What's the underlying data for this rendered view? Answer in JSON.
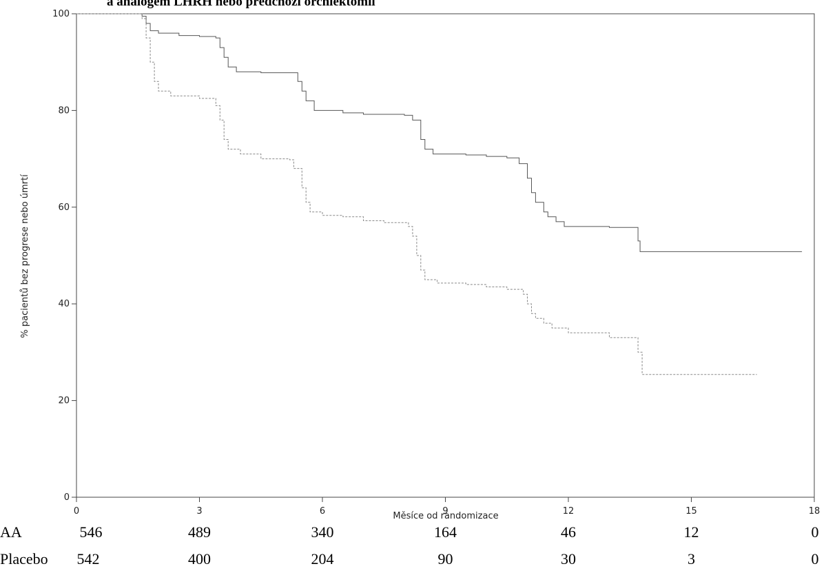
{
  "title": "a analogem LHRH nebo předchozí orchiektomií",
  "chart_data": {
    "type": "line",
    "ylabel": "% pacientů bez progrese nebo úmrtí",
    "xlabel": "Měsíce od randomizace",
    "xlim": [
      0,
      18
    ],
    "ylim": [
      0,
      100
    ],
    "xticks": [
      "0",
      "3",
      "6",
      "9",
      "12",
      "15",
      "18"
    ],
    "yticks": [
      "0",
      "20",
      "40",
      "60",
      "80",
      "100"
    ],
    "grid": false,
    "series": [
      {
        "name": "AA",
        "style": "solid",
        "points": [
          [
            0,
            100
          ],
          [
            1.5,
            100
          ],
          [
            1.6,
            99.5
          ],
          [
            1.7,
            98
          ],
          [
            1.8,
            96.5
          ],
          [
            2,
            96
          ],
          [
            2.5,
            95.5
          ],
          [
            3,
            95.3
          ],
          [
            3.4,
            95
          ],
          [
            3.5,
            93
          ],
          [
            3.6,
            91
          ],
          [
            3.7,
            89
          ],
          [
            3.9,
            88
          ],
          [
            4.5,
            87.8
          ],
          [
            5.2,
            87.8
          ],
          [
            5.4,
            86
          ],
          [
            5.5,
            84
          ],
          [
            5.6,
            82
          ],
          [
            5.8,
            80
          ],
          [
            6.5,
            79.5
          ],
          [
            7,
            79.2
          ],
          [
            8,
            79
          ],
          [
            8.2,
            78
          ],
          [
            8.4,
            74
          ],
          [
            8.5,
            72
          ],
          [
            8.7,
            71
          ],
          [
            9.5,
            70.8
          ],
          [
            10,
            70.5
          ],
          [
            10.5,
            70.2
          ],
          [
            10.8,
            69
          ],
          [
            11,
            66
          ],
          [
            11.1,
            63
          ],
          [
            11.2,
            61
          ],
          [
            11.4,
            59
          ],
          [
            11.5,
            58
          ],
          [
            11.7,
            57
          ],
          [
            11.9,
            56
          ],
          [
            13,
            55.8
          ],
          [
            13.6,
            55.8
          ],
          [
            13.7,
            53
          ],
          [
            13.75,
            50.8
          ],
          [
            17.7,
            50.8
          ]
        ],
        "at_risk": [
          "546",
          "489",
          "340",
          "164",
          "46",
          "12",
          "0"
        ]
      },
      {
        "name": "Placebo",
        "style": "dashed",
        "points": [
          [
            0,
            100
          ],
          [
            1.6,
            99
          ],
          [
            1.7,
            95
          ],
          [
            1.8,
            90
          ],
          [
            1.9,
            86
          ],
          [
            2,
            84
          ],
          [
            2.3,
            83
          ],
          [
            3,
            82.5
          ],
          [
            3.4,
            81
          ],
          [
            3.5,
            78
          ],
          [
            3.6,
            74
          ],
          [
            3.7,
            72
          ],
          [
            4,
            71
          ],
          [
            4.5,
            70
          ],
          [
            5.2,
            69.8
          ],
          [
            5.3,
            68
          ],
          [
            5.5,
            64
          ],
          [
            5.6,
            61
          ],
          [
            5.7,
            59
          ],
          [
            6,
            58.3
          ],
          [
            6.5,
            58
          ],
          [
            7,
            57.2
          ],
          [
            7.5,
            56.8
          ],
          [
            8.1,
            56
          ],
          [
            8.2,
            54
          ],
          [
            8.3,
            50
          ],
          [
            8.4,
            47
          ],
          [
            8.5,
            45
          ],
          [
            8.8,
            44.3
          ],
          [
            9.5,
            44
          ],
          [
            10,
            43.5
          ],
          [
            10.5,
            43
          ],
          [
            10.9,
            42
          ],
          [
            11,
            40
          ],
          [
            11.1,
            38
          ],
          [
            11.2,
            37
          ],
          [
            11.4,
            36
          ],
          [
            11.6,
            35
          ],
          [
            12,
            34
          ],
          [
            13,
            33
          ],
          [
            13.6,
            33
          ],
          [
            13.7,
            30
          ],
          [
            13.8,
            25.4
          ],
          [
            16.6,
            25.4
          ]
        ],
        "at_risk": [
          "542",
          "400",
          "204",
          "90",
          "30",
          "3",
          "0"
        ]
      }
    ]
  }
}
